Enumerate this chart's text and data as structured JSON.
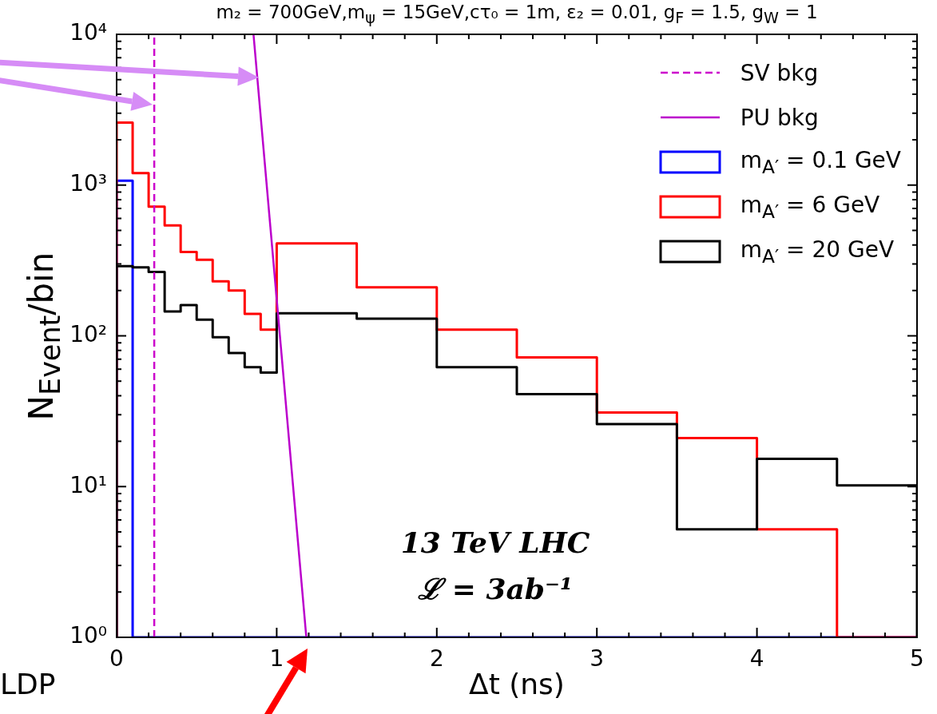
{
  "chart_data": {
    "type": "histogram",
    "title": "m₂ = 700GeV,m$_{ψ}$ = 15GeV,cτ₀ = 1m, ε₂ = 0.01, g$_{F}$ = 1.5, g$_{W}$ = 1",
    "xlabel": "Δt (ns)",
    "ylabel": "N$_{Event}$/bin",
    "log": "y",
    "legend": "top right",
    "annotations": [
      "13 TeV LHC",
      "ℒ = 3ab⁻¹",
      "LDP"
    ],
    "xlim": [
      0,
      5
    ],
    "ylim": [
      1,
      10000
    ],
    "xticks": [
      0,
      {
        "value": 0.2,
        "label": null
      },
      {
        "value": 0.4,
        "label": null
      },
      {
        "value": 0.6,
        "label": null
      },
      {
        "value": 0.8,
        "label": null
      },
      1,
      {
        "value": 1.2,
        "label": null
      },
      {
        "value": 1.4,
        "label": null
      },
      {
        "value": 1.6,
        "label": null
      },
      {
        "value": 1.8,
        "label": null
      },
      2,
      {
        "value": 2.2,
        "label": null
      },
      {
        "value": 2.4,
        "label": null
      },
      {
        "value": 2.6,
        "label": null
      },
      {
        "value": 2.8,
        "label": null
      },
      3,
      {
        "value": 3.2,
        "label": null
      },
      {
        "value": 3.4,
        "label": null
      },
      {
        "value": 3.6,
        "label": null
      },
      {
        "value": 3.8,
        "label": null
      },
      4,
      {
        "value": 4.2,
        "label": null
      },
      {
        "value": 4.4,
        "label": null
      },
      {
        "value": 4.6,
        "label": null
      },
      {
        "value": 4.8,
        "label": null
      },
      5
    ],
    "yticks": [
      {
        "value": 1,
        "label": "10⁰"
      },
      {
        "value": 2,
        "label": null
      },
      {
        "value": 3,
        "label": null
      },
      {
        "value": 4,
        "label": null
      },
      {
        "value": 5,
        "label": null
      },
      {
        "value": 6,
        "label": null
      },
      {
        "value": 7,
        "label": null
      },
      {
        "value": 8,
        "label": null
      },
      {
        "value": 9,
        "label": null
      },
      {
        "value": 10,
        "label": "10¹"
      },
      {
        "value": 20,
        "label": null
      },
      {
        "value": 30,
        "label": null
      },
      {
        "value": 40,
        "label": null
      },
      {
        "value": 50,
        "label": null
      },
      {
        "value": 60,
        "label": null
      },
      {
        "value": 70,
        "label": null
      },
      {
        "value": 80,
        "label": null
      },
      {
        "value": 90,
        "label": null
      },
      {
        "value": 100,
        "label": "10²"
      },
      {
        "value": 200,
        "label": null
      },
      {
        "value": 300,
        "label": null
      },
      {
        "value": 400,
        "label": null
      },
      {
        "value": 500,
        "label": null
      },
      {
        "value": 600,
        "label": null
      },
      {
        "value": 700,
        "label": null
      },
      {
        "value": 800,
        "label": null
      },
      {
        "value": 900,
        "label": null
      },
      {
        "value": 1000,
        "label": "10³"
      },
      {
        "value": 2000,
        "label": null
      },
      {
        "value": 3000,
        "label": null
      },
      {
        "value": 4000,
        "label": null
      },
      {
        "value": 5000,
        "label": null
      },
      {
        "value": 6000,
        "label": null
      },
      {
        "value": 7000,
        "label": null
      },
      {
        "value": 8000,
        "label": null
      },
      {
        "value": 9000,
        "label": null
      },
      {
        "value": 10000,
        "label": "10⁴"
      }
    ],
    "bins": [
      0,
      0.1,
      0.2,
      0.3,
      0.4,
      0.5,
      0.6,
      0.7,
      0.8,
      0.9,
      1.0,
      1.5,
      2.0,
      2.5,
      3.0,
      3.5,
      4.0,
      4.5,
      5.0
    ],
    "series": [
      {
        "name": "SV bkg",
        "type": "line",
        "line_style": "dashed",
        "color": "#cc00cc",
        "x": [
          0.235,
          0.235
        ],
        "values": [
          1,
          10000
        ]
      },
      {
        "name": "PU bkg",
        "type": "line",
        "line_style": "solid",
        "color": "#bb00cc",
        "x": [
          0.855,
          1.185
        ],
        "values": [
          10000,
          1
        ]
      },
      {
        "name": "m$_{A′}$ = 0.1 GeV",
        "color": "#0000ff",
        "values": [
          1070,
          null,
          null,
          null,
          null,
          null,
          null,
          null,
          null,
          null,
          null,
          null,
          null,
          null,
          null,
          null,
          null,
          null
        ]
      },
      {
        "name": "m$_{A′}$ = 6 GeV",
        "color": "#ff0000",
        "values": [
          2600,
          1200,
          720,
          540,
          360,
          320,
          230,
          200,
          140,
          110,
          410,
          210,
          110,
          72,
          31,
          21,
          5.2,
          null
        ]
      },
      {
        "name": "m$_{A′}$ = 20 GeV",
        "color": "#000000",
        "values": [
          290,
          285,
          265,
          145,
          160,
          128,
          98,
          77,
          62,
          57,
          141,
          130,
          62,
          41,
          26,
          5.2,
          15.3,
          10.2
        ]
      }
    ]
  }
}
